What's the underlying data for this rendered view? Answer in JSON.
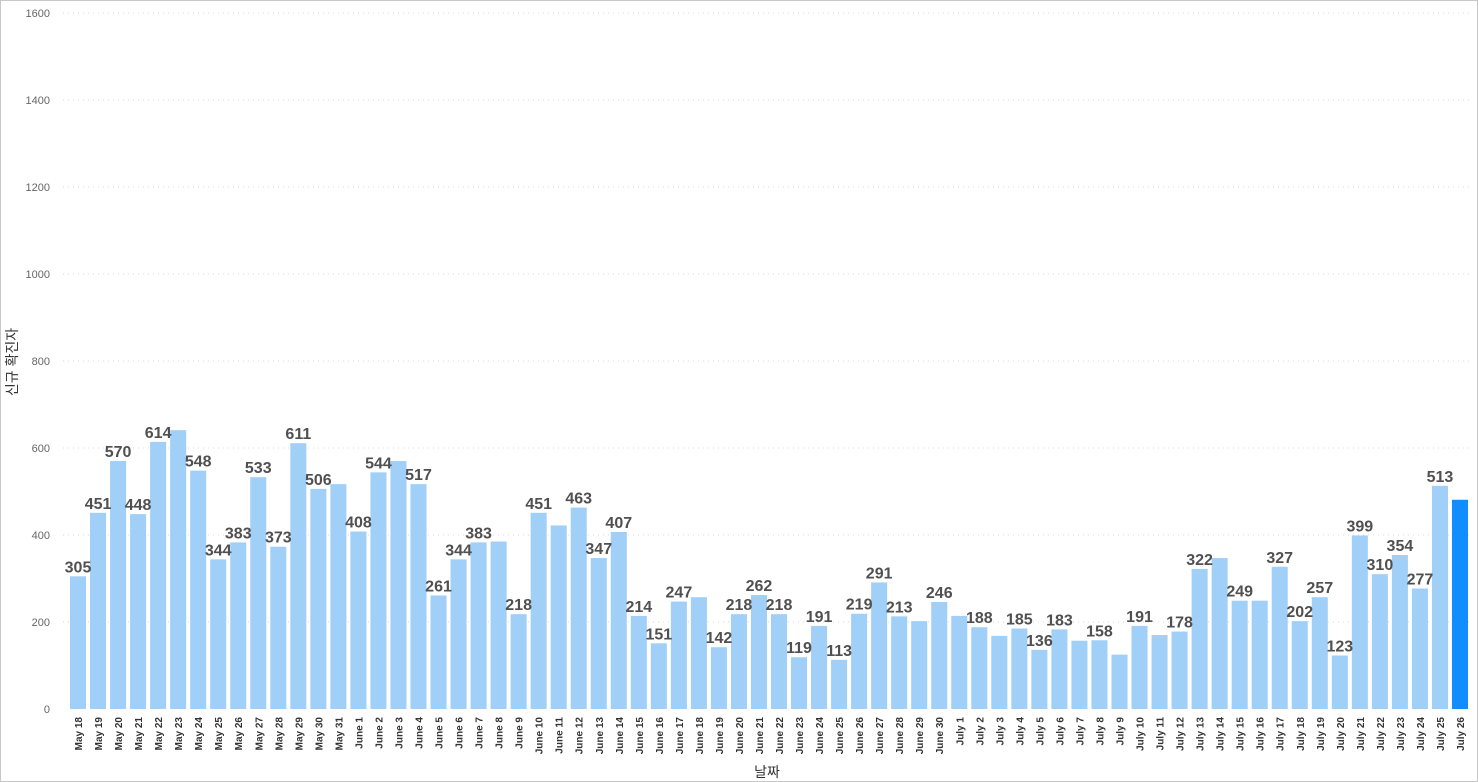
{
  "chart_data": {
    "type": "bar",
    "title": "",
    "xlabel": "날짜",
    "ylabel": "신규 확진자",
    "ylim": [
      0,
      1600
    ],
    "yticks": [
      0,
      200,
      400,
      600,
      800,
      1000,
      1200,
      1400,
      1600
    ],
    "grid": true,
    "legend": "none",
    "colors": {
      "bar": "#a0cff8",
      "highlight": "#118dff"
    },
    "categories": [
      "May 18",
      "May 19",
      "May 20",
      "May 21",
      "May 22",
      "May 23",
      "May 24",
      "May 25",
      "May 26",
      "May 27",
      "May 28",
      "May 29",
      "May 30",
      "May 31",
      "June 1",
      "June 2",
      "June 3",
      "June 4",
      "June 5",
      "June 6",
      "June 7",
      "June 8",
      "June 9",
      "June 10",
      "June 11",
      "June 12",
      "June 13",
      "June 14",
      "June 15",
      "June 16",
      "June 17",
      "June 18",
      "June 19",
      "June 20",
      "June 21",
      "June 22",
      "June 23",
      "June 24",
      "June 25",
      "June 26",
      "June 27",
      "June 28",
      "June 29",
      "June 30",
      "July 1",
      "July 2",
      "July 3",
      "July 4",
      "July 5",
      "July 6",
      "July 7",
      "July 8",
      "July 9",
      "July 10",
      "July 11",
      "July 12",
      "July 13",
      "July 14",
      "July 15",
      "July 16",
      "July 17",
      "July 18",
      "July 19",
      "July 20",
      "July 21",
      "July 22",
      "July 23",
      "July 24",
      "July 25",
      "July 26"
    ],
    "values": [
      305,
      451,
      570,
      448,
      614,
      641,
      548,
      344,
      383,
      533,
      373,
      611,
      506,
      517,
      408,
      544,
      570,
      517,
      261,
      344,
      383,
      385,
      218,
      451,
      422,
      463,
      347,
      407,
      214,
      151,
      247,
      257,
      142,
      218,
      262,
      218,
      119,
      191,
      113,
      219,
      291,
      213,
      202,
      246,
      214,
      188,
      168,
      185,
      136,
      183,
      157,
      158,
      125,
      191,
      170,
      178,
      322,
      347,
      249,
      249,
      327,
      202,
      257,
      123,
      399,
      310,
      354,
      277,
      513,
      481
    ],
    "data_labels": [
      "305",
      "451",
      "570",
      "448",
      "614",
      "",
      "548",
      "344",
      "383",
      "533",
      "373",
      "611",
      "506",
      "",
      "408",
      "544",
      "",
      "517",
      "261",
      "344",
      "383",
      "",
      "218",
      "451",
      "",
      "463",
      "347",
      "407",
      "214",
      "151",
      "247",
      "",
      "142",
      "218",
      "262",
      "218",
      "119",
      "191",
      "113",
      "219",
      "291",
      "213",
      "",
      "246",
      "",
      "188",
      "",
      "185",
      "136",
      "183",
      "",
      "158",
      "",
      "191",
      "",
      "178",
      "322",
      "",
      "249",
      "",
      "327",
      "202",
      "257",
      "123",
      "399",
      "310",
      "354",
      "277",
      "513",
      ""
    ],
    "highlight_index": 69
  }
}
